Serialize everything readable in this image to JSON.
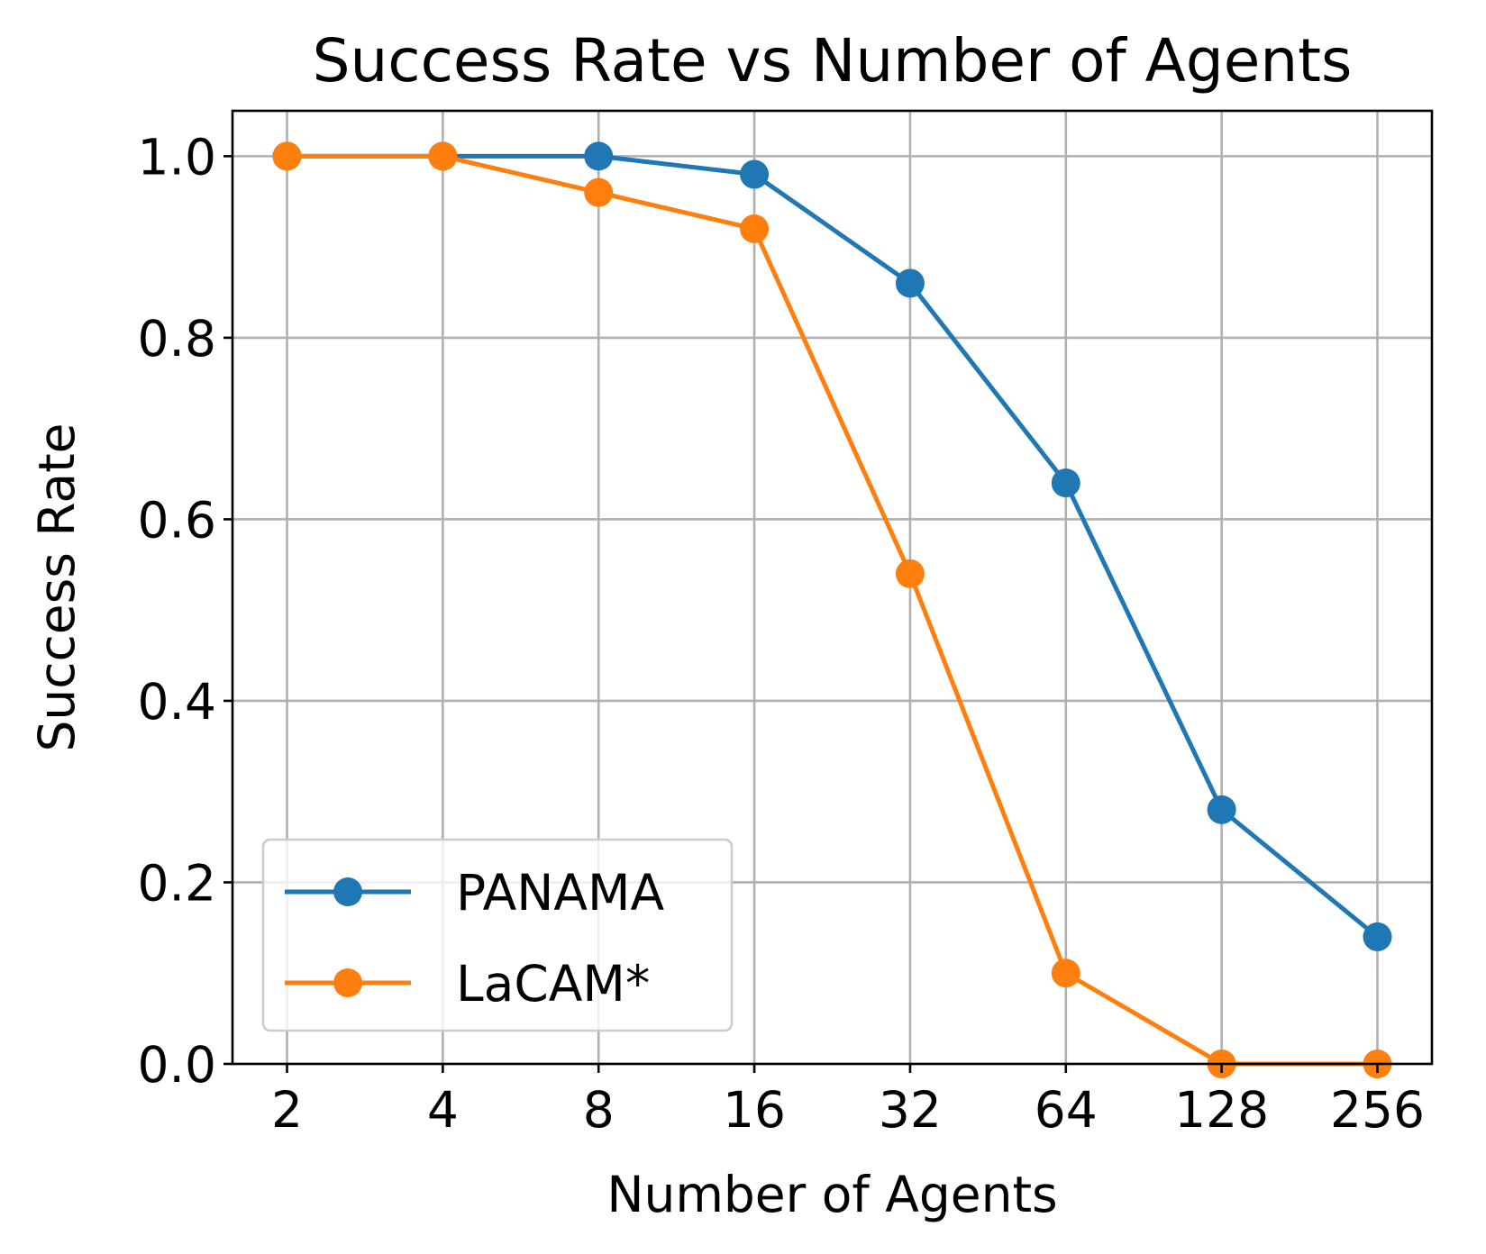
{
  "chart_data": {
    "type": "line",
    "title": "Success Rate vs Number of Agents",
    "xlabel": "Number of Agents",
    "ylabel": "Success Rate",
    "x_scale": "log2",
    "x": [
      2,
      4,
      8,
      16,
      32,
      64,
      128,
      256
    ],
    "x_tick_labels": [
      "2",
      "4",
      "8",
      "16",
      "32",
      "64",
      "128",
      "256"
    ],
    "ylim": [
      0.0,
      1.05
    ],
    "y_ticks": [
      0.0,
      0.2,
      0.4,
      0.6,
      0.8,
      1.0
    ],
    "y_tick_labels": [
      "0.0",
      "0.2",
      "0.4",
      "0.6",
      "0.8",
      "1.0"
    ],
    "grid": true,
    "legend_position": "lower-left",
    "series": [
      {
        "name": "PANAMA",
        "color": "#1f77b4",
        "marker": "circle",
        "values": [
          1.0,
          1.0,
          1.0,
          0.98,
          0.86,
          0.64,
          0.28,
          0.14
        ]
      },
      {
        "name": "LaCAM*",
        "color": "#ff7f0e",
        "marker": "circle",
        "values": [
          1.0,
          1.0,
          0.96,
          0.92,
          0.54,
          0.1,
          0.0,
          0.0
        ]
      }
    ]
  }
}
